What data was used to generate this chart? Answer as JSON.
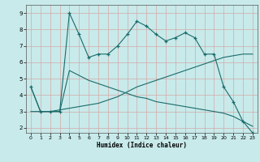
{
  "xlabel": "Humidex (Indice chaleur)",
  "bg_color": "#c8eaea",
  "grid_color": "#d4a8a8",
  "line_color": "#1a6b6b",
  "xlim": [
    -0.5,
    23.5
  ],
  "ylim": [
    1.7,
    9.5
  ],
  "yticks": [
    2,
    3,
    4,
    5,
    6,
    7,
    8,
    9
  ],
  "xticks": [
    0,
    1,
    2,
    3,
    4,
    5,
    6,
    7,
    8,
    9,
    10,
    11,
    12,
    13,
    14,
    15,
    16,
    17,
    18,
    19,
    20,
    21,
    22,
    23
  ],
  "spiky_x": [
    0,
    1,
    2,
    3,
    4,
    5,
    6,
    7,
    8,
    9,
    10,
    11,
    12,
    13,
    14,
    15,
    16,
    17,
    18,
    19,
    20,
    21,
    22,
    23
  ],
  "spiky_y": [
    4.5,
    3.0,
    3.0,
    3.0,
    9.0,
    7.7,
    6.3,
    6.5,
    6.5,
    7.0,
    7.7,
    8.5,
    8.2,
    7.7,
    7.3,
    7.5,
    7.8,
    7.5,
    6.5,
    6.5,
    4.5,
    3.6,
    2.4,
    1.7
  ],
  "asc_x": [
    0,
    1,
    2,
    3,
    4,
    5,
    6,
    7,
    8,
    9,
    10,
    11,
    12,
    13,
    14,
    15,
    16,
    17,
    18,
    19,
    20,
    21,
    22,
    23
  ],
  "asc_y": [
    3.0,
    3.0,
    3.0,
    3.1,
    3.2,
    3.3,
    3.4,
    3.5,
    3.7,
    3.9,
    4.2,
    4.5,
    4.7,
    4.9,
    5.1,
    5.3,
    5.5,
    5.7,
    5.9,
    6.1,
    6.3,
    6.4,
    6.5,
    6.5
  ],
  "desc_x": [
    0,
    1,
    2,
    3,
    4,
    5,
    6,
    7,
    8,
    9,
    10,
    11,
    12,
    13,
    14,
    15,
    16,
    17,
    18,
    19,
    20,
    21,
    22,
    23
  ],
  "desc_y": [
    4.5,
    3.0,
    3.0,
    3.0,
    5.5,
    5.2,
    4.9,
    4.7,
    4.5,
    4.3,
    4.1,
    3.9,
    3.8,
    3.6,
    3.5,
    3.4,
    3.3,
    3.2,
    3.1,
    3.0,
    2.9,
    2.7,
    2.4,
    2.1
  ]
}
